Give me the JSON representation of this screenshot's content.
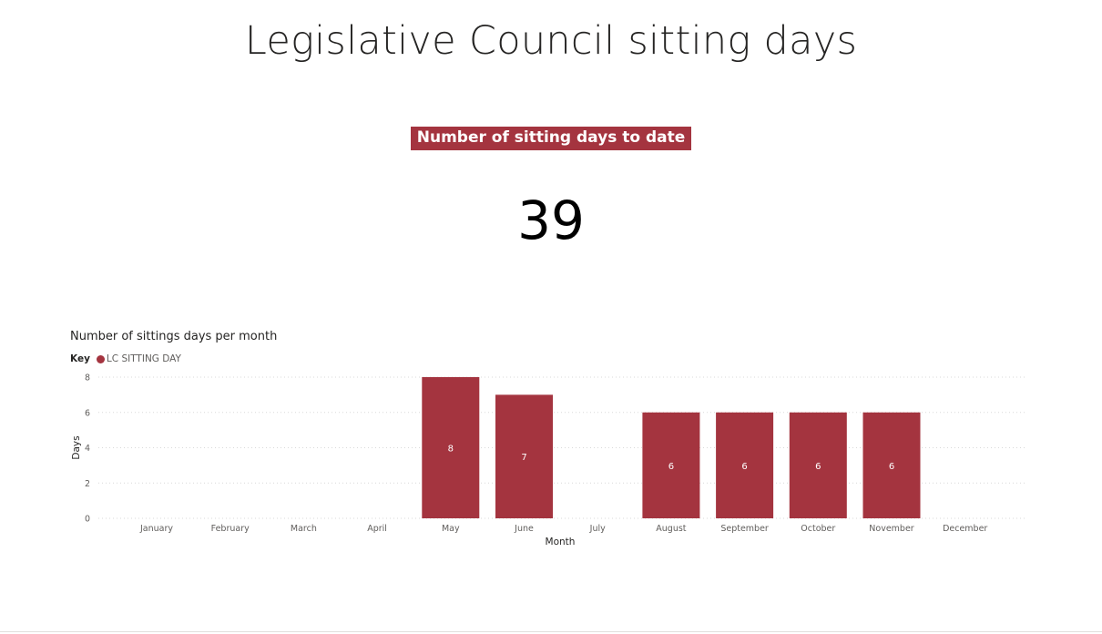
{
  "page": {
    "title": "Legislative Council sitting days"
  },
  "kpi": {
    "label": "Number of sitting days to date",
    "value": "39"
  },
  "legend": {
    "key_label": "Key",
    "series_label": "LC SITTING DAY"
  },
  "colors": {
    "bar": "#a4343f",
    "grid": "#d9d9d9",
    "axis_text": "#605e5c"
  },
  "chart_data": {
    "type": "bar",
    "title": "Number of sittings days per month",
    "xlabel": "Month",
    "ylabel": "Days",
    "ylim": [
      0,
      8
    ],
    "yticks": [
      0,
      2,
      4,
      6,
      8
    ],
    "grid": true,
    "legend_position": "top-left",
    "categories": [
      "January",
      "February",
      "March",
      "April",
      "May",
      "June",
      "July",
      "August",
      "September",
      "October",
      "November",
      "December"
    ],
    "series": [
      {
        "name": "LC SITTING DAY",
        "values": [
          0,
          0,
          0,
          0,
          8,
          7,
          0,
          6,
          6,
          6,
          6,
          0
        ]
      }
    ]
  }
}
